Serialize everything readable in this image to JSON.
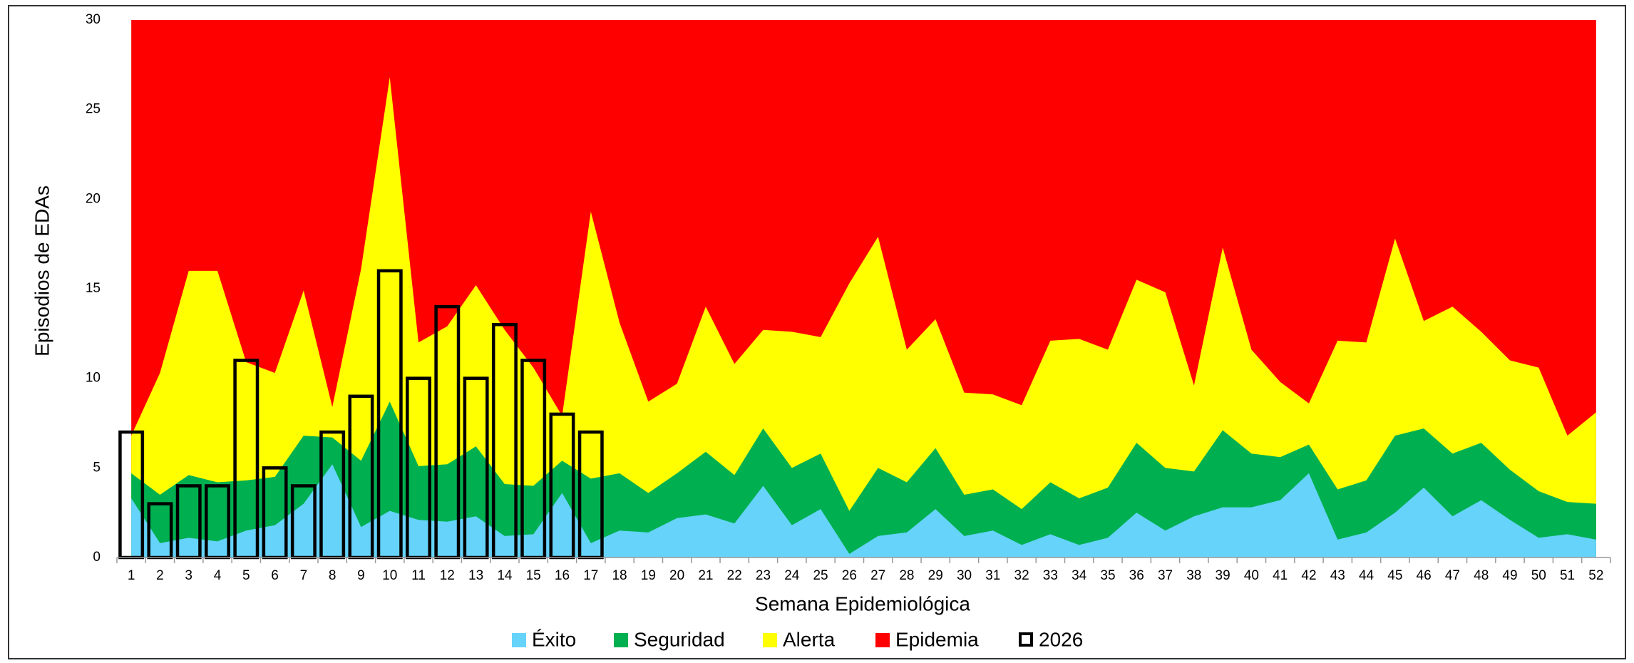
{
  "chart_data": {
    "type": "area",
    "x_label": "Semana Epidemiológica",
    "y_label": "Episodios de EDAs",
    "categories": [
      "1",
      "2",
      "3",
      "4",
      "5",
      "6",
      "7",
      "8",
      "9",
      "10",
      "11",
      "12",
      "13",
      "14",
      "15",
      "16",
      "17",
      "18",
      "19",
      "20",
      "21",
      "22",
      "23",
      "24",
      "25",
      "26",
      "27",
      "28",
      "29",
      "30",
      "31",
      "32",
      "33",
      "34",
      "35",
      "36",
      "37",
      "38",
      "39",
      "40",
      "41",
      "42",
      "43",
      "44",
      "45",
      "46",
      "47",
      "48",
      "49",
      "50",
      "51",
      "52"
    ],
    "ylim": [
      0,
      30
    ],
    "yticks": [
      0,
      5,
      10,
      15,
      20,
      25,
      30
    ],
    "grid": false,
    "legend": "bottom",
    "series": [
      {
        "name": "Éxito",
        "type": "area",
        "color": "#66d3fa",
        "values": [
          3.3,
          0.8,
          1.1,
          0.9,
          1.5,
          1.8,
          3.0,
          5.2,
          1.7,
          2.6,
          2.1,
          2.0,
          2.3,
          1.2,
          1.3,
          3.6,
          0.8,
          1.5,
          1.4,
          2.2,
          2.4,
          1.9,
          4.0,
          1.8,
          2.7,
          0.2,
          1.2,
          1.4,
          2.7,
          1.2,
          1.5,
          0.7,
          1.3,
          0.7,
          1.1,
          2.5,
          1.5,
          2.3,
          2.8,
          2.8,
          3.2,
          4.7,
          1.0,
          1.4,
          2.5,
          3.9,
          2.3,
          3.2,
          2.1,
          1.1,
          1.3,
          1.0
        ]
      },
      {
        "name": "Seguridad",
        "type": "area",
        "color": "#00b050",
        "values": [
          4.7,
          3.5,
          4.6,
          4.2,
          4.3,
          4.5,
          6.8,
          6.7,
          5.4,
          8.7,
          5.1,
          5.2,
          6.2,
          4.1,
          4.0,
          5.4,
          4.4,
          4.7,
          3.6,
          4.7,
          5.9,
          4.6,
          7.2,
          5.0,
          5.8,
          2.6,
          5.0,
          4.2,
          6.1,
          3.5,
          3.8,
          2.7,
          4.2,
          3.3,
          3.9,
          6.4,
          5.0,
          4.8,
          7.1,
          5.8,
          5.6,
          6.3,
          3.8,
          4.3,
          6.8,
          7.2,
          5.8,
          6.4,
          4.9,
          3.7,
          3.1,
          3.0
        ]
      },
      {
        "name": "Alerta",
        "type": "area",
        "color": "#ffff00",
        "values": [
          6.8,
          10.3,
          16.0,
          16.0,
          10.9,
          10.3,
          14.9,
          8.4,
          16.1,
          26.8,
          12.0,
          12.9,
          15.2,
          12.7,
          10.6,
          7.9,
          19.3,
          13.1,
          8.7,
          9.7,
          14.0,
          10.8,
          12.7,
          12.6,
          12.3,
          15.3,
          17.9,
          11.6,
          13.3,
          9.2,
          9.1,
          8.5,
          12.1,
          12.2,
          11.6,
          15.5,
          14.8,
          9.6,
          17.3,
          11.6,
          9.8,
          8.6,
          12.1,
          12.0,
          17.8,
          13.2,
          14.0,
          12.6,
          11.0,
          10.6,
          6.8,
          8.1
        ]
      },
      {
        "name": "Epidemia",
        "type": "area",
        "color": "#ff0000",
        "values": [
          30,
          30,
          30,
          30,
          30,
          30,
          30,
          30,
          30,
          30,
          30,
          30,
          30,
          30,
          30,
          30,
          30,
          30,
          30,
          30,
          30,
          30,
          30,
          30,
          30,
          30,
          30,
          30,
          30,
          30,
          30,
          30,
          30,
          30,
          30,
          30,
          30,
          30,
          30,
          30,
          30,
          30,
          30,
          30,
          30,
          30,
          30,
          30,
          30,
          30,
          30,
          30
        ]
      },
      {
        "name": "2026",
        "type": "bar",
        "color": "#000000",
        "values": [
          7,
          3,
          4,
          4,
          11,
          5,
          4,
          7,
          9,
          16,
          10,
          14,
          10,
          13,
          11,
          8,
          7,
          null,
          null,
          null,
          null,
          null,
          null,
          null,
          null,
          null,
          null,
          null,
          null,
          null,
          null,
          null,
          null,
          null,
          null,
          null,
          null,
          null,
          null,
          null,
          null,
          null,
          null,
          null,
          null,
          null,
          null,
          null,
          null,
          null,
          null,
          null
        ]
      }
    ]
  }
}
